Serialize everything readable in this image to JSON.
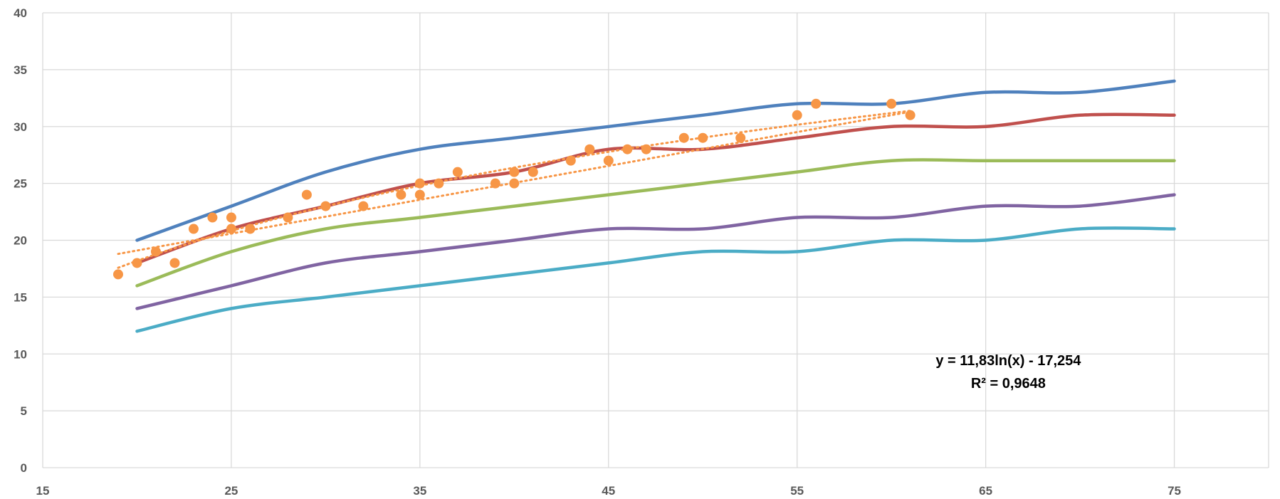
{
  "chart_data": {
    "type": "line",
    "title": "",
    "xlabel": "",
    "ylabel": "",
    "xlim": [
      15,
      80
    ],
    "ylim": [
      0,
      40
    ],
    "x_ticks": [
      15,
      25,
      35,
      45,
      55,
      65,
      75
    ],
    "y_ticks": [
      0,
      5,
      10,
      15,
      20,
      25,
      30,
      35,
      40
    ],
    "grid": true,
    "legend": "none",
    "series": [
      {
        "color": "#4F81BD",
        "style": "smooth-line",
        "points": [
          [
            20,
            20
          ],
          [
            25,
            23
          ],
          [
            30,
            26
          ],
          [
            35,
            28
          ],
          [
            40,
            29
          ],
          [
            45,
            30
          ],
          [
            50,
            31
          ],
          [
            55,
            32
          ],
          [
            60,
            32
          ],
          [
            65,
            33
          ],
          [
            70,
            33
          ],
          [
            75,
            34
          ]
        ]
      },
      {
        "color": "#C0504D",
        "style": "smooth-line",
        "points": [
          [
            20,
            18
          ],
          [
            25,
            21
          ],
          [
            30,
            23
          ],
          [
            35,
            25
          ],
          [
            40,
            26
          ],
          [
            45,
            28
          ],
          [
            50,
            28
          ],
          [
            55,
            29
          ],
          [
            60,
            30
          ],
          [
            65,
            30
          ],
          [
            70,
            31
          ],
          [
            75,
            31
          ]
        ]
      },
      {
        "color": "#9BBB59",
        "style": "smooth-line",
        "points": [
          [
            20,
            16
          ],
          [
            25,
            19
          ],
          [
            30,
            21
          ],
          [
            35,
            22
          ],
          [
            40,
            23
          ],
          [
            45,
            24
          ],
          [
            50,
            25
          ],
          [
            55,
            26
          ],
          [
            60,
            27
          ],
          [
            65,
            27
          ],
          [
            70,
            27
          ],
          [
            75,
            27
          ]
        ]
      },
      {
        "color": "#8064A2",
        "style": "smooth-line",
        "points": [
          [
            20,
            14
          ],
          [
            25,
            16
          ],
          [
            30,
            18
          ],
          [
            35,
            19
          ],
          [
            40,
            20
          ],
          [
            45,
            21
          ],
          [
            50,
            21
          ],
          [
            55,
            22
          ],
          [
            60,
            22
          ],
          [
            65,
            23
          ],
          [
            70,
            23
          ],
          [
            75,
            24
          ]
        ]
      },
      {
        "color": "#4BACC6",
        "style": "smooth-line",
        "points": [
          [
            20,
            12
          ],
          [
            25,
            14
          ],
          [
            30,
            15
          ],
          [
            35,
            16
          ],
          [
            40,
            17
          ],
          [
            45,
            18
          ],
          [
            50,
            19
          ],
          [
            55,
            19
          ],
          [
            60,
            20
          ],
          [
            65,
            20
          ],
          [
            70,
            21
          ],
          [
            75,
            21
          ]
        ]
      },
      {
        "color": "#F79646",
        "style": "scatter",
        "points": [
          [
            19,
            17
          ],
          [
            20,
            18
          ],
          [
            21,
            19
          ],
          [
            22,
            18
          ],
          [
            23,
            21
          ],
          [
            24,
            22
          ],
          [
            25,
            22
          ],
          [
            25,
            21
          ],
          [
            26,
            21
          ],
          [
            28,
            22
          ],
          [
            29,
            24
          ],
          [
            30,
            23
          ],
          [
            32,
            23
          ],
          [
            34,
            24
          ],
          [
            35,
            25
          ],
          [
            35,
            24
          ],
          [
            36,
            25
          ],
          [
            37,
            26
          ],
          [
            39,
            25
          ],
          [
            40,
            26
          ],
          [
            40,
            25
          ],
          [
            41,
            26
          ],
          [
            43,
            27
          ],
          [
            44,
            28
          ],
          [
            45,
            27
          ],
          [
            46,
            28
          ],
          [
            47,
            28
          ],
          [
            49,
            29
          ],
          [
            50,
            29
          ],
          [
            52,
            29
          ],
          [
            55,
            31
          ],
          [
            56,
            32
          ],
          [
            60,
            32
          ],
          [
            61,
            31
          ]
        ]
      }
    ],
    "trendlines": [
      {
        "color": "#F79646",
        "style": "dotted",
        "kind": "logarithmic",
        "a": 11.83,
        "b": -17.254,
        "x_range": [
          19,
          61
        ]
      },
      {
        "color": "#F79646",
        "style": "dotted",
        "kind": "linear",
        "points": [
          [
            19,
            18.8
          ],
          [
            61,
            31.3
          ]
        ]
      }
    ],
    "annotation": {
      "line1": "y = 11,83ln(x) - 17,254",
      "line2": "R² = 0,9648",
      "x": 66.2,
      "y": 9
    }
  }
}
